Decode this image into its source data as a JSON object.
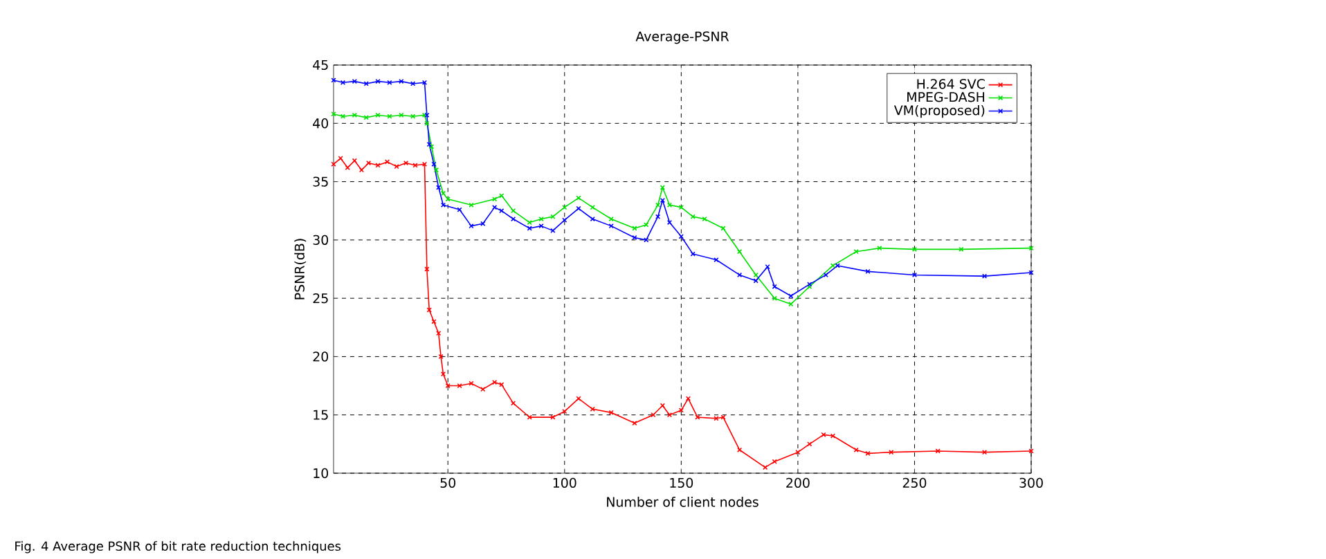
{
  "chart_data": {
    "type": "line",
    "title": "Average-PSNR",
    "xlabel": "Number of client nodes",
    "ylabel": "PSNR(dB)",
    "annotations": [
      "Fig. 4 Average PSNR of bit rate reduction techniques"
    ],
    "xlim": [
      1,
      300
    ],
    "ylim": [
      10,
      45
    ],
    "xticks": [
      50,
      100,
      150,
      200,
      250,
      300
    ],
    "yticks": [
      10,
      15,
      20,
      25,
      30,
      35,
      40,
      45
    ],
    "grid": true,
    "legend": "top right",
    "line_style": "solid",
    "series": [
      {
        "name": "H.264 SVC",
        "color": "#ff0000",
        "marker": "cross",
        "x": [
          1,
          4,
          7,
          10,
          13,
          16,
          20,
          24,
          28,
          32,
          36,
          40,
          41,
          42,
          44,
          46,
          47,
          48,
          50,
          55,
          60,
          65,
          70,
          73,
          78,
          85,
          95,
          100,
          106,
          112,
          120,
          130,
          138,
          142,
          145,
          150,
          153,
          157,
          165,
          168,
          175,
          186,
          190,
          200,
          205,
          211,
          215,
          225,
          230,
          240,
          260,
          280,
          300
        ],
        "values": [
          36.5,
          37,
          36.2,
          36.8,
          36,
          36.6,
          36.4,
          36.7,
          36.3,
          36.6,
          36.4,
          36.5,
          27.5,
          24,
          23,
          22,
          20,
          18.5,
          17.5,
          17.5,
          17.7,
          17.2,
          17.8,
          17.6,
          16,
          14.8,
          14.8,
          15.3,
          16.4,
          15.5,
          15.2,
          14.3,
          15,
          15.8,
          15,
          15.4,
          16.4,
          14.8,
          14.7,
          14.8,
          12,
          10.5,
          11,
          11.8,
          12.5,
          13.3,
          13.2,
          12,
          11.7,
          11.8,
          11.9,
          11.8,
          11.9
        ]
      },
      {
        "name": "MPEG-DASH",
        "color": "#00e000",
        "marker": "cross",
        "x": [
          1,
          5,
          10,
          15,
          20,
          25,
          30,
          35,
          40,
          41,
          43,
          45,
          48,
          50,
          60,
          70,
          73,
          78,
          85,
          90,
          95,
          100,
          106,
          112,
          120,
          130,
          135,
          140,
          142,
          145,
          150,
          155,
          160,
          168,
          175,
          182,
          190,
          197,
          205,
          215,
          225,
          235,
          250,
          270,
          300
        ],
        "values": [
          40.8,
          40.6,
          40.7,
          40.5,
          40.7,
          40.6,
          40.7,
          40.6,
          40.7,
          40,
          38,
          36,
          34,
          33.5,
          33,
          33.5,
          33.8,
          32.5,
          31.5,
          31.8,
          32,
          32.8,
          33.6,
          32.8,
          31.8,
          31,
          31.3,
          33,
          34.5,
          33,
          32.8,
          32,
          31.8,
          31,
          29,
          27,
          25,
          24.5,
          26,
          27.8,
          29,
          29.3,
          29.2,
          29.2,
          29.3
        ]
      },
      {
        "name": "VM(proposed)",
        "color": "#0000ff",
        "marker": "cross",
        "x": [
          1,
          5,
          10,
          15,
          20,
          25,
          30,
          35,
          40,
          41,
          42,
          44,
          46,
          48,
          55,
          60,
          65,
          70,
          73,
          78,
          85,
          90,
          95,
          100,
          106,
          112,
          120,
          130,
          135,
          140,
          142,
          145,
          150,
          155,
          165,
          175,
          182,
          187,
          190,
          197,
          205,
          212,
          217,
          230,
          250,
          280,
          300
        ],
        "values": [
          43.7,
          43.5,
          43.6,
          43.4,
          43.6,
          43.5,
          43.6,
          43.4,
          43.5,
          40.7,
          38.2,
          36.5,
          34.5,
          33,
          32.6,
          31.2,
          31.4,
          32.8,
          32.5,
          31.8,
          31,
          31.2,
          30.8,
          31.7,
          32.7,
          31.8,
          31.2,
          30.2,
          30,
          32,
          33.4,
          31.5,
          30.3,
          28.8,
          28.3,
          27,
          26.5,
          27.7,
          26,
          25.2,
          26.2,
          27,
          27.8,
          27.3,
          27,
          26.9,
          27.2
        ]
      }
    ]
  }
}
